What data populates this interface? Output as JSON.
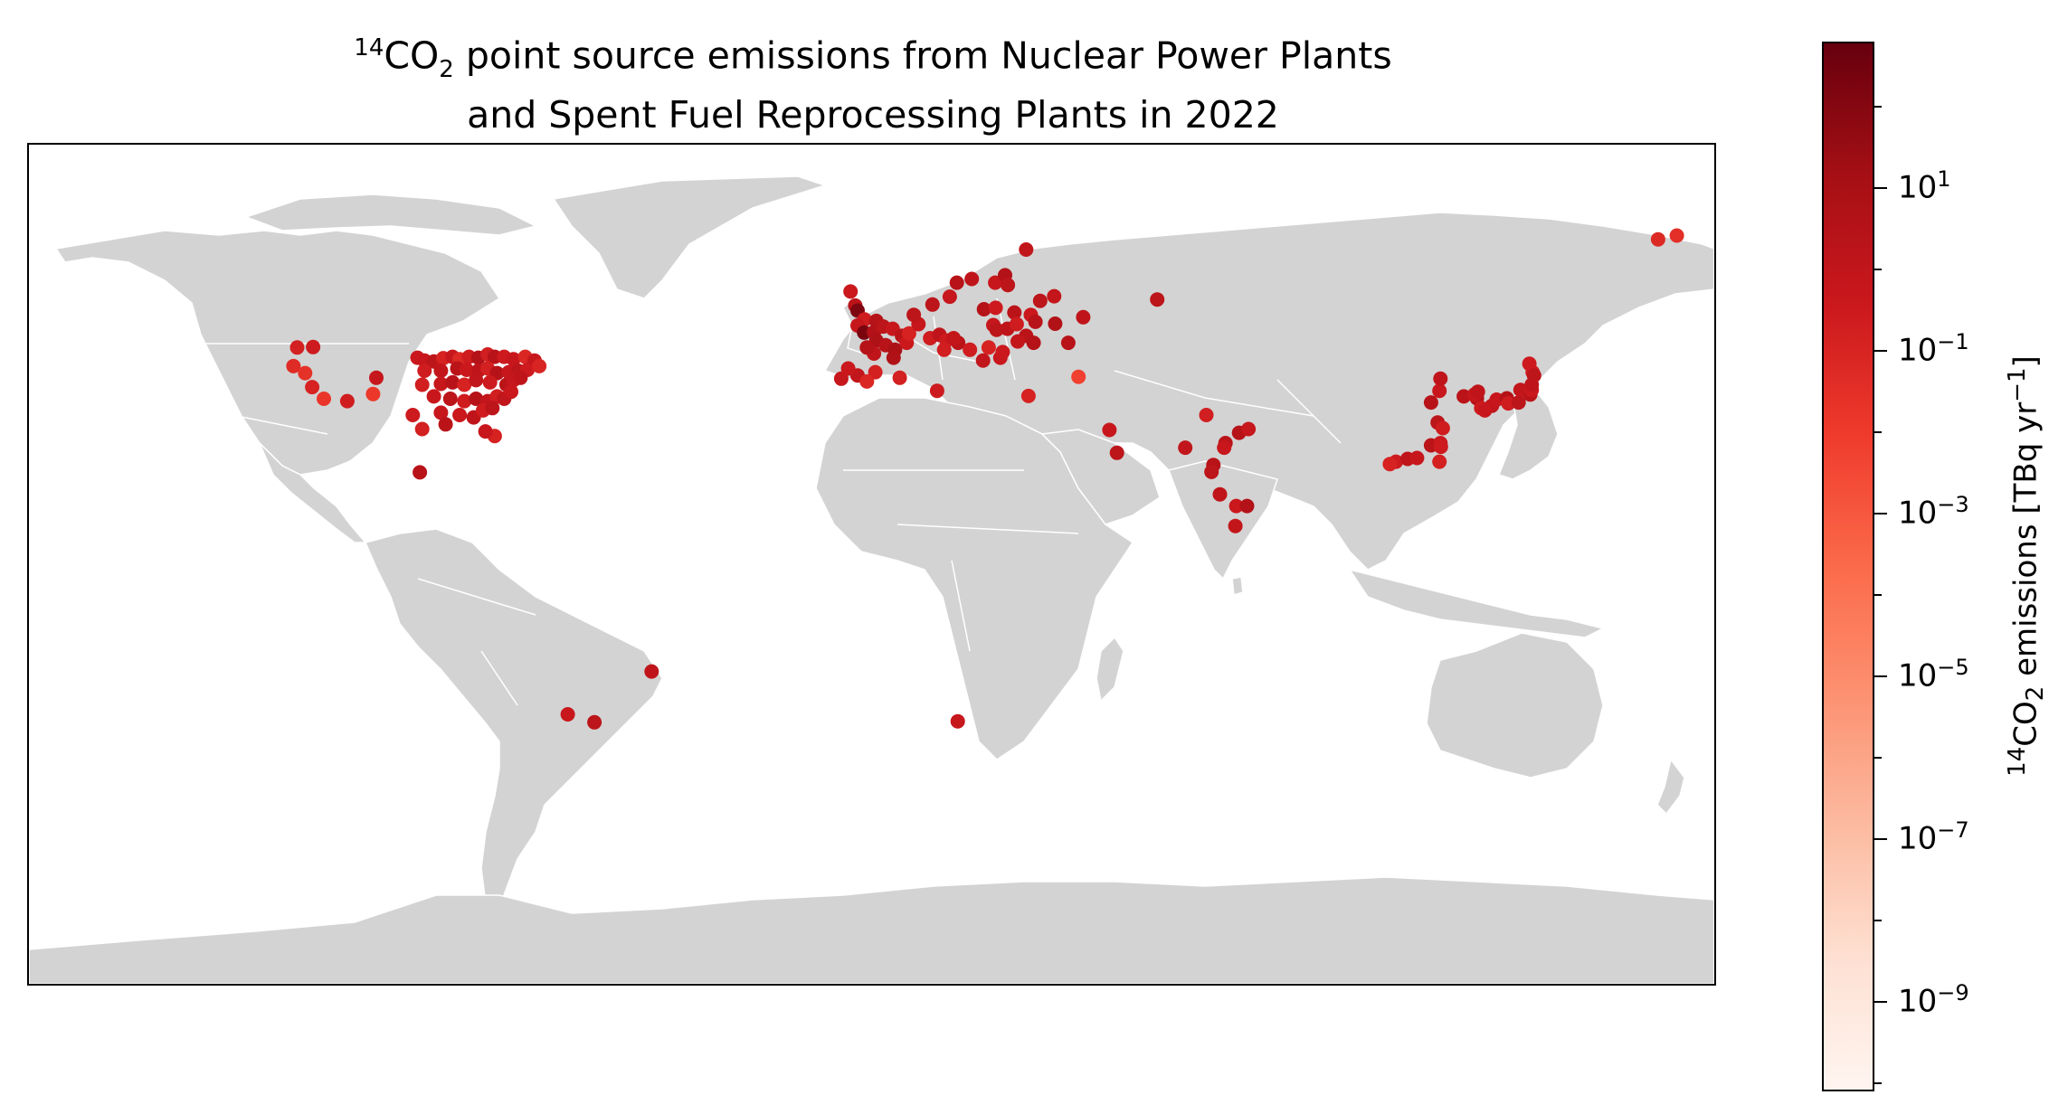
{
  "title": {
    "iso_sup": "14",
    "co": "CO",
    "sub": "2",
    "line1_rest": " point source emissions from Nuclear Power Plants",
    "line2": "and Spent Fuel Reprocessing Plants in 2022"
  },
  "colorbar": {
    "label_sup": "14",
    "label_co": "CO",
    "label_sub": "2",
    "label_mid": " emissions [TBq yr",
    "label_exp": "−1",
    "label_end": "]",
    "ticks": [
      {
        "base": "10",
        "exp": "1",
        "log": 1
      },
      {
        "base": "10",
        "exp": "−1",
        "log": -1
      },
      {
        "base": "10",
        "exp": "−3",
        "log": -3
      },
      {
        "base": "10",
        "exp": "−5",
        "log": -5
      },
      {
        "base": "10",
        "exp": "−7",
        "log": -7
      },
      {
        "base": "10",
        "exp": "−9",
        "log": -9
      }
    ],
    "log_min": -10.1,
    "log_max": 2.8,
    "colors": [
      "#fff5f0",
      "#fee0d2",
      "#fcbba1",
      "#fc9272",
      "#fb6a4a",
      "#ef3b2c",
      "#cb181d",
      "#a50f15",
      "#67000d"
    ],
    "scale": "log"
  },
  "map": {
    "land_color": "#d3d3d3",
    "border_color": "#ffffff",
    "ocean_color": "#ffffff",
    "projection": "PlateCarree"
  },
  "chart_data": {
    "type": "scatter",
    "xlabel": "",
    "ylabel": "",
    "xlim": [
      -180,
      180
    ],
    "ylim": [
      -90,
      90
    ],
    "point_color_variable": "14CO2 emissions [TBq yr-1] (log10)",
    "points": [
      {
        "lon": -122.7,
        "lat": 46.5,
        "log": -0.8
      },
      {
        "lon": -119.3,
        "lat": 46.6,
        "log": -0.5
      },
      {
        "lon": -123.5,
        "lat": 42.5,
        "log": -1.3
      },
      {
        "lon": -121.0,
        "lat": 41.0,
        "log": -1.6
      },
      {
        "lon": -119.5,
        "lat": 38.0,
        "log": -0.9
      },
      {
        "lon": -117.0,
        "lat": 35.5,
        "log": -1.8
      },
      {
        "lon": -112.0,
        "lat": 35.0,
        "log": -0.6
      },
      {
        "lon": -105.8,
        "lat": 40.0,
        "log": -0.2
      },
      {
        "lon": -106.5,
        "lat": 36.5,
        "log": -1.9
      },
      {
        "lon": -97.0,
        "lat": 44.3,
        "log": -0.4
      },
      {
        "lon": -95.5,
        "lat": 43.7,
        "log": -0.3
      },
      {
        "lon": -93.5,
        "lat": 43.5,
        "log": 0.2
      },
      {
        "lon": -91.5,
        "lat": 44.2,
        "log": -0.9
      },
      {
        "lon": -89.5,
        "lat": 44.5,
        "log": -0.2
      },
      {
        "lon": -88.0,
        "lat": 44.0,
        "log": -1.2
      },
      {
        "lon": -86.0,
        "lat": 44.5,
        "log": -0.6
      },
      {
        "lon": -84.0,
        "lat": 44.3,
        "log": 0.6
      },
      {
        "lon": -82.0,
        "lat": 45.0,
        "log": -0.7
      },
      {
        "lon": -80.5,
        "lat": 44.5,
        "log": 0.4
      },
      {
        "lon": -78.5,
        "lat": 44.5,
        "log": -0.5
      },
      {
        "lon": -76.5,
        "lat": 44.0,
        "log": -0.3
      },
      {
        "lon": -74.0,
        "lat": 44.5,
        "log": -1.1
      },
      {
        "lon": -72.0,
        "lat": 43.7,
        "log": -0.2
      },
      {
        "lon": -95.5,
        "lat": 41.5,
        "log": -0.6
      },
      {
        "lon": -92.0,
        "lat": 41.5,
        "log": -0.1
      },
      {
        "lon": -88.5,
        "lat": 42.0,
        "log": 0.3
      },
      {
        "lon": -86.5,
        "lat": 41.7,
        "log": -0.4
      },
      {
        "lon": -84.0,
        "lat": 41.5,
        "log": 0.1
      },
      {
        "lon": -82.0,
        "lat": 42.0,
        "log": -0.8
      },
      {
        "lon": -80.0,
        "lat": 41.0,
        "log": 0.5
      },
      {
        "lon": -77.5,
        "lat": 41.2,
        "log": -0.3
      },
      {
        "lon": -75.5,
        "lat": 41.5,
        "log": 0.2
      },
      {
        "lon": -73.5,
        "lat": 41.7,
        "log": -0.5
      },
      {
        "lon": -71.0,
        "lat": 42.5,
        "log": -1.0
      },
      {
        "lon": -96.0,
        "lat": 38.5,
        "log": -0.7
      },
      {
        "lon": -92.0,
        "lat": 38.7,
        "log": -0.2
      },
      {
        "lon": -89.5,
        "lat": 39.0,
        "log": 0.4
      },
      {
        "lon": -87.0,
        "lat": 38.5,
        "log": -0.9
      },
      {
        "lon": -84.5,
        "lat": 39.5,
        "log": 0.0
      },
      {
        "lon": -81.5,
        "lat": 39.0,
        "log": -0.5
      },
      {
        "lon": -78.0,
        "lat": 38.5,
        "log": 0.3
      },
      {
        "lon": -76.5,
        "lat": 39.5,
        "log": -0.2
      },
      {
        "lon": -75.0,
        "lat": 40.0,
        "log": 0.1
      },
      {
        "lon": -93.5,
        "lat": 36.0,
        "log": -0.3
      },
      {
        "lon": -90.0,
        "lat": 35.5,
        "log": 0.2
      },
      {
        "lon": -87.0,
        "lat": 35.0,
        "log": -0.6
      },
      {
        "lon": -84.5,
        "lat": 35.5,
        "log": 0.5
      },
      {
        "lon": -82.0,
        "lat": 35.0,
        "log": -0.1
      },
      {
        "lon": -80.0,
        "lat": 36.0,
        "log": -0.7
      },
      {
        "lon": -78.5,
        "lat": 35.5,
        "log": 0.0
      },
      {
        "lon": -77.0,
        "lat": 37.0,
        "log": -0.4
      },
      {
        "lon": -98.0,
        "lat": 32.0,
        "log": -0.5
      },
      {
        "lon": -96.0,
        "lat": 29.0,
        "log": -0.8
      },
      {
        "lon": -92.0,
        "lat": 32.5,
        "log": -0.2
      },
      {
        "lon": -91.0,
        "lat": 30.0,
        "log": 0.3
      },
      {
        "lon": -88.0,
        "lat": 32.0,
        "log": -0.4
      },
      {
        "lon": -85.0,
        "lat": 31.5,
        "log": 0.1
      },
      {
        "lon": -83.0,
        "lat": 33.0,
        "log": -0.6
      },
      {
        "lon": -81.0,
        "lat": 33.5,
        "log": 0.2
      },
      {
        "lon": -80.5,
        "lat": 27.5,
        "log": -0.9
      },
      {
        "lon": -82.5,
        "lat": 28.5,
        "log": -0.3
      },
      {
        "lon": -96.5,
        "lat": 19.7,
        "log": 0.4
      },
      {
        "lon": -4.5,
        "lat": 58.5,
        "log": -0.4
      },
      {
        "lon": -3.5,
        "lat": 55.5,
        "log": 0.3
      },
      {
        "lon": -3.0,
        "lat": 54.4,
        "log": 2.2
      },
      {
        "lon": -1.5,
        "lat": 52.5,
        "log": -0.6
      },
      {
        "lon": 1.0,
        "lat": 52.2,
        "log": 0.5
      },
      {
        "lon": -3.0,
        "lat": 51.2,
        "log": -0.2
      },
      {
        "lon": -1.6,
        "lat": 49.7,
        "log": 2.3
      },
      {
        "lon": 0.5,
        "lat": 49.8,
        "log": 0.6
      },
      {
        "lon": 2.5,
        "lat": 51.0,
        "log": 0.2
      },
      {
        "lon": 4.5,
        "lat": 50.5,
        "log": -0.3
      },
      {
        "lon": 1.0,
        "lat": 48.0,
        "log": 0.8
      },
      {
        "lon": 3.0,
        "lat": 47.0,
        "log": 0.4
      },
      {
        "lon": 5.0,
        "lat": 46.0,
        "log": 0.9
      },
      {
        "lon": 4.7,
        "lat": 44.3,
        "log": 0.7
      },
      {
        "lon": 0.5,
        "lat": 45.2,
        "log": 0.1
      },
      {
        "lon": -1.0,
        "lat": 46.5,
        "log": 0.5
      },
      {
        "lon": 6.5,
        "lat": 49.0,
        "log": 0.3
      },
      {
        "lon": 7.5,
        "lat": 47.5,
        "log": -0.4
      },
      {
        "lon": 8.0,
        "lat": 49.5,
        "log": -0.9
      },
      {
        "lon": 10.0,
        "lat": 51.5,
        "log": -0.2
      },
      {
        "lon": 9.0,
        "lat": 53.5,
        "log": 0.2
      },
      {
        "lon": 12.5,
        "lat": 48.5,
        "log": -0.6
      },
      {
        "lon": 14.5,
        "lat": 49.2,
        "log": 0.1
      },
      {
        "lon": 16.0,
        "lat": 48.0,
        "log": -0.5
      },
      {
        "lon": 18.5,
        "lat": 47.5,
        "log": 0.3
      },
      {
        "lon": 17.5,
        "lat": 48.5,
        "log": -0.1
      },
      {
        "lon": 15.5,
        "lat": 46.0,
        "log": -0.7
      },
      {
        "lon": -6.5,
        "lat": 39.8,
        "log": -0.2
      },
      {
        "lon": -3.0,
        "lat": 40.5,
        "log": 0.0
      },
      {
        "lon": 0.8,
        "lat": 41.2,
        "log": -0.8
      },
      {
        "lon": -5.0,
        "lat": 42.0,
        "log": -0.4
      },
      {
        "lon": -1.0,
        "lat": 39.2,
        "log": -1.1
      },
      {
        "lon": 13.0,
        "lat": 55.7,
        "log": 0.2
      },
      {
        "lon": 16.7,
        "lat": 57.4,
        "log": -0.2
      },
      {
        "lon": 18.2,
        "lat": 60.4,
        "log": 0.4
      },
      {
        "lon": 21.4,
        "lat": 61.2,
        "log": 0.1
      },
      {
        "lon": 26.4,
        "lat": 60.4,
        "log": -0.3
      },
      {
        "lon": 28.5,
        "lat": 62.0,
        "log": 0.6
      },
      {
        "lon": 29.1,
        "lat": 59.9,
        "log": 0.2
      },
      {
        "lon": 33.0,
        "lat": 67.5,
        "log": 0.0
      },
      {
        "lon": 24.0,
        "lat": 54.7,
        "log": 0.5
      },
      {
        "lon": 26.5,
        "lat": 55.0,
        "log": -0.5
      },
      {
        "lon": 30.5,
        "lat": 54.0,
        "log": 0.3
      },
      {
        "lon": 34.0,
        "lat": 53.5,
        "log": -0.4
      },
      {
        "lon": 36.0,
        "lat": 56.5,
        "log": 0.2
      },
      {
        "lon": 39.0,
        "lat": 57.5,
        "log": -0.1
      },
      {
        "lon": 35.0,
        "lat": 52.0,
        "log": 0.4
      },
      {
        "lon": 39.2,
        "lat": 51.6,
        "log": 0.7
      },
      {
        "lon": 26.0,
        "lat": 51.3,
        "log": -0.2
      },
      {
        "lon": 29.0,
        "lat": 50.5,
        "log": 0.1
      },
      {
        "lon": 31.0,
        "lat": 51.5,
        "log": -0.6
      },
      {
        "lon": 33.0,
        "lat": 49.0,
        "log": 0.3
      },
      {
        "lon": 34.6,
        "lat": 47.5,
        "log": 0.5
      },
      {
        "lon": 31.2,
        "lat": 47.8,
        "log": -0.1
      },
      {
        "lon": 26.7,
        "lat": 50.3,
        "log": 0.2
      },
      {
        "lon": 23.8,
        "lat": 43.7,
        "log": 0.0
      },
      {
        "lon": 27.5,
        "lat": 44.3,
        "log": -0.3
      },
      {
        "lon": 21.0,
        "lat": 46.0,
        "log": -0.6
      },
      {
        "lon": 25.0,
        "lat": 46.5,
        "log": -0.9
      },
      {
        "lon": 28.0,
        "lat": 45.5,
        "log": -0.4
      },
      {
        "lon": 42.0,
        "lat": 47.5,
        "log": 0.4
      },
      {
        "lon": 45.2,
        "lat": 53.0,
        "log": 0.1
      },
      {
        "lon": 61.0,
        "lat": 56.8,
        "log": 0.2
      },
      {
        "lon": 44.2,
        "lat": 40.2,
        "log": -2.2
      },
      {
        "lon": 33.5,
        "lat": 36.1,
        "log": -0.9
      },
      {
        "lon": 14.0,
        "lat": 37.2,
        "log": -0.5
      },
      {
        "lon": 6.0,
        "lat": 40.0,
        "log": -0.8
      },
      {
        "lon": 50.8,
        "lat": 28.8,
        "log": -0.3
      },
      {
        "lon": 52.4,
        "lat": 23.9,
        "log": 0.2
      },
      {
        "lon": 71.5,
        "lat": 32.0,
        "log": -0.7
      },
      {
        "lon": 67.0,
        "lat": 25.0,
        "log": 0.0
      },
      {
        "lon": 75.6,
        "lat": 26.0,
        "log": 0.3
      },
      {
        "lon": 78.5,
        "lat": 28.2,
        "log": 0.5
      },
      {
        "lon": 80.5,
        "lat": 29.0,
        "log": -0.2
      },
      {
        "lon": 73.0,
        "lat": 21.3,
        "log": 0.4
      },
      {
        "lon": 72.6,
        "lat": 19.8,
        "log": 0.2
      },
      {
        "lon": 74.4,
        "lat": 15.0,
        "log": 0.1
      },
      {
        "lon": 77.9,
        "lat": 12.5,
        "log": -0.4
      },
      {
        "lon": 80.2,
        "lat": 12.5,
        "log": 0.6
      },
      {
        "lon": 77.7,
        "lat": 8.2,
        "log": -0.1
      },
      {
        "lon": 75.3,
        "lat": 25.0,
        "log": -0.3
      },
      {
        "lon": 112.0,
        "lat": 22.0,
        "log": -0.5
      },
      {
        "lon": 114.5,
        "lat": 22.6,
        "log": 0.1
      },
      {
        "lon": 116.5,
        "lat": 22.8,
        "log": -0.2
      },
      {
        "lon": 119.5,
        "lat": 25.5,
        "log": 0.3
      },
      {
        "lon": 121.5,
        "lat": 26.0,
        "log": -0.4
      },
      {
        "lon": 120.9,
        "lat": 30.4,
        "log": 0.2
      },
      {
        "lon": 122.0,
        "lat": 29.2,
        "log": -0.6
      },
      {
        "lon": 119.5,
        "lat": 34.7,
        "log": 0.4
      },
      {
        "lon": 121.3,
        "lat": 37.2,
        "log": -0.3
      },
      {
        "lon": 121.5,
        "lat": 39.8,
        "log": 0.1
      },
      {
        "lon": 121.3,
        "lat": 22.0,
        "log": -0.8
      },
      {
        "lon": 121.6,
        "lat": 25.2,
        "log": -0.5
      },
      {
        "lon": 110.7,
        "lat": 21.5,
        "log": -0.9
      },
      {
        "lon": 126.5,
        "lat": 36.0,
        "log": 0.3
      },
      {
        "lon": 129.3,
        "lat": 35.6,
        "log": 0.6
      },
      {
        "lon": 128.8,
        "lat": 36.4,
        "log": -0.2
      },
      {
        "lon": 129.5,
        "lat": 37.0,
        "log": 0.1
      },
      {
        "lon": 130.2,
        "lat": 33.5,
        "log": -0.5
      },
      {
        "lon": 132.5,
        "lat": 34.0,
        "log": 0.0
      },
      {
        "lon": 133.5,
        "lat": 35.3,
        "log": -0.3
      },
      {
        "lon": 135.7,
        "lat": 35.6,
        "log": 0.5
      },
      {
        "lon": 136.0,
        "lat": 34.5,
        "log": -0.6
      },
      {
        "lon": 138.2,
        "lat": 34.7,
        "log": 0.2
      },
      {
        "lon": 138.6,
        "lat": 37.4,
        "log": -0.1
      },
      {
        "lon": 140.7,
        "lat": 36.4,
        "log": 0.3
      },
      {
        "lon": 141.0,
        "lat": 37.4,
        "log": -0.4
      },
      {
        "lon": 141.0,
        "lat": 38.5,
        "log": 0.1
      },
      {
        "lon": 141.2,
        "lat": 41.2,
        "log": -0.7
      },
      {
        "lon": 140.5,
        "lat": 43.0,
        "log": -0.5
      },
      {
        "lon": 141.5,
        "lat": 40.5,
        "log": 0.2
      },
      {
        "lon": 131.0,
        "lat": 33.0,
        "log": -0.3
      },
      {
        "lon": 168.0,
        "lat": 69.7,
        "log": -1.2
      },
      {
        "lon": 172.0,
        "lat": 70.5,
        "log": -1.5
      },
      {
        "lon": -47.0,
        "lat": -23.0,
        "log": 0.1
      },
      {
        "lon": -64.9,
        "lat": -32.2,
        "log": -0.3
      },
      {
        "lon": -59.2,
        "lat": -33.9,
        "log": 0.2
      },
      {
        "lon": 18.4,
        "lat": -33.7,
        "log": -0.2
      }
    ]
  }
}
